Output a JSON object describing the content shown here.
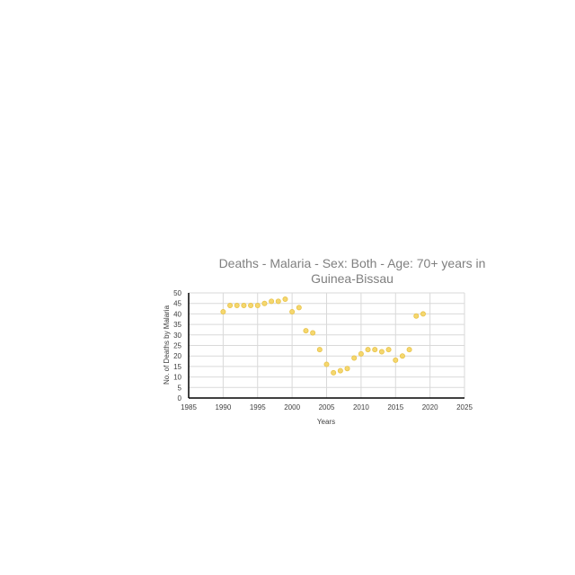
{
  "chart_data": {
    "type": "scatter",
    "title_line1": "Deaths - Malaria - Sex: Both - Age: 70+ years in",
    "title_line2": "Guinea-Bissau",
    "xlabel": "Years",
    "ylabel": "No. of Deaths by Malaria",
    "xlim": [
      1985,
      2025
    ],
    "ylim": [
      0,
      50
    ],
    "x_ticks": [
      "1985",
      "1990",
      "1995",
      "2000",
      "2005",
      "2010",
      "2015",
      "2020",
      "2025"
    ],
    "y_ticks": [
      "0",
      "5",
      "10",
      "15",
      "20",
      "25",
      "30",
      "35",
      "40",
      "45",
      "50"
    ],
    "grid": true,
    "marker_color": "#f5d76e",
    "marker_edge": "#e8c34a",
    "x": [
      1990,
      1991,
      1992,
      1993,
      1994,
      1995,
      1996,
      1997,
      1998,
      1999,
      2000,
      2001,
      2002,
      2003,
      2004,
      2005,
      2006,
      2007,
      2008,
      2009,
      2010,
      2011,
      2012,
      2013,
      2014,
      2015,
      2016,
      2017,
      2018,
      2019
    ],
    "y": [
      41,
      44,
      44,
      44,
      44,
      44,
      45,
      46,
      46,
      47,
      41,
      43,
      32,
      31,
      23,
      16,
      12,
      13,
      14,
      19,
      21,
      23,
      23,
      22,
      23,
      18,
      20,
      23,
      39,
      40
    ]
  }
}
